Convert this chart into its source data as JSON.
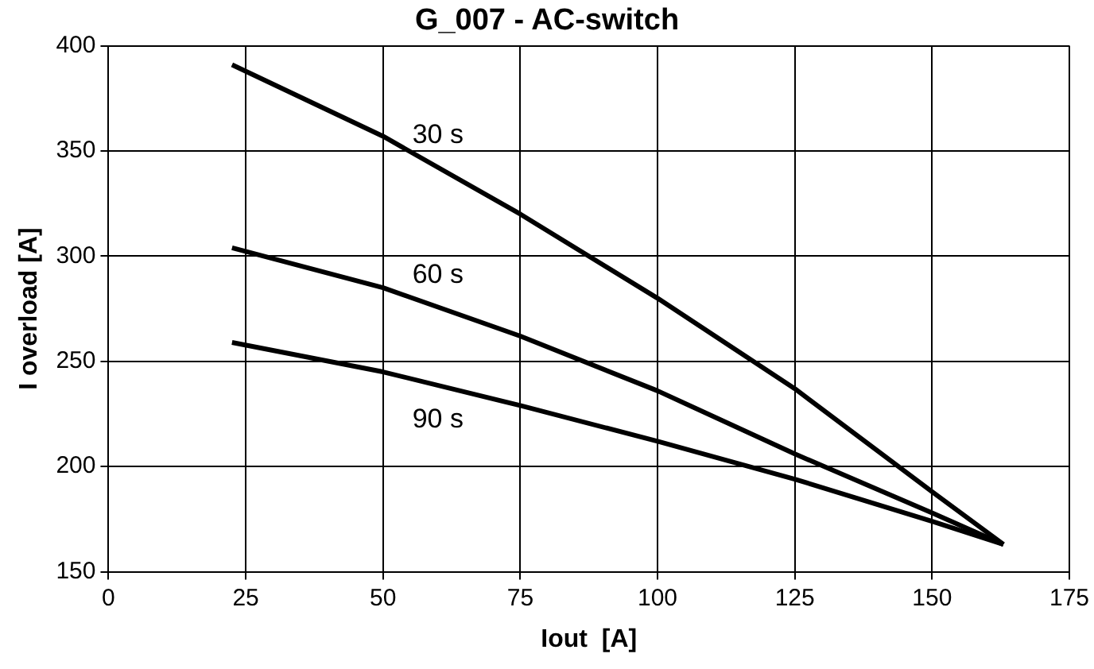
{
  "chart_data": {
    "type": "line",
    "title": "G_007 - AC-switch",
    "xlabel": "Iout  [A]",
    "ylabel": "I overload [A]",
    "xlim": [
      0,
      175
    ],
    "xticks": [
      0,
      25,
      50,
      75,
      100,
      125,
      150,
      175
    ],
    "ylim": [
      150,
      400
    ],
    "yticks": [
      150,
      200,
      250,
      300,
      350,
      400
    ],
    "grid": true,
    "legend": false,
    "marker": "none",
    "line_style": "solid",
    "series": [
      {
        "name": "30 s",
        "color": "#000000",
        "x": [
          22.5,
          50,
          75,
          100,
          125,
          150,
          163
        ],
        "values": [
          391,
          357,
          320,
          280,
          237,
          188,
          163
        ]
      },
      {
        "name": "60 s",
        "color": "#000000",
        "x": [
          22.5,
          50,
          75,
          100,
          125,
          150,
          163
        ],
        "values": [
          304,
          285,
          262,
          236,
          206,
          178,
          163
        ]
      },
      {
        "name": "90 s",
        "color": "#000000",
        "x": [
          22.5,
          50,
          75,
          100,
          125,
          150,
          163
        ],
        "values": [
          259,
          245,
          229,
          212,
          194,
          174,
          163
        ]
      }
    ]
  }
}
